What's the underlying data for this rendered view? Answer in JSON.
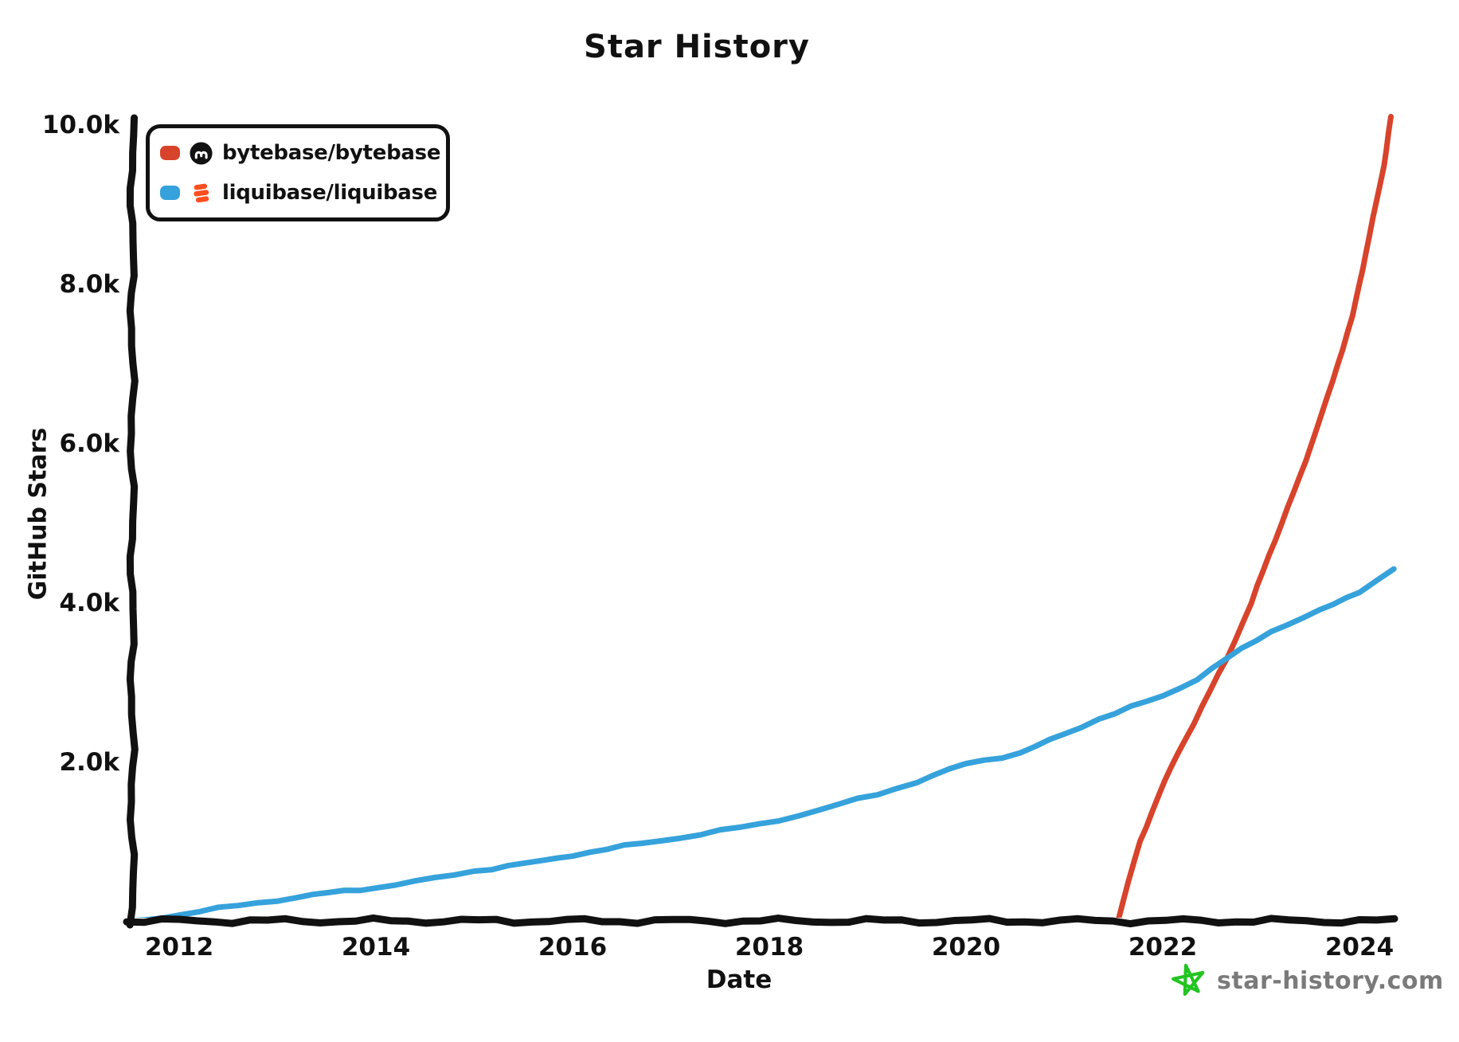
{
  "title": "Star History",
  "axes": {
    "xlabel": "Date",
    "ylabel": "GitHub Stars",
    "x_ticks": [
      "2012",
      "2014",
      "2016",
      "2018",
      "2020",
      "2022",
      "2024"
    ],
    "y_ticks": [
      {
        "label": "2.0k",
        "value": 2000
      },
      {
        "label": "4.0k",
        "value": 4000
      },
      {
        "label": "6.0k",
        "value": 6000
      },
      {
        "label": "8.0k",
        "value": 8000
      },
      {
        "label": "10.0k",
        "value": 10000
      }
    ]
  },
  "legend": {
    "items": [
      {
        "label": "bytebase/bytebase",
        "swatch_color": "#d8432b",
        "icon": "bytebase-avatar-icon"
      },
      {
        "label": "liquibase/liquibase",
        "swatch_color": "#36a2db",
        "icon": "liquibase-logo-icon"
      }
    ]
  },
  "watermark": {
    "text": "star-history.com",
    "icon": "star-icon",
    "icon_color": "#22c421",
    "text_color": "#7a7a7a"
  },
  "colors": {
    "bytebase_line": "#d8432b",
    "liquibase_line": "#36a2db",
    "axis": "#111111",
    "bytebase_avatar_bg": "#111111",
    "bytebase_avatar_glyph": "#ffffff",
    "liquibase_logo_orange": "#ff4e1f"
  },
  "chart_data": {
    "type": "line",
    "title": "Star History",
    "xlabel": "Date",
    "ylabel": "GitHub Stars",
    "xlim": [
      2011.5,
      2024.5
    ],
    "ylim": [
      0,
      10100
    ],
    "x_tick_values": [
      2012,
      2014,
      2016,
      2018,
      2020,
      2022,
      2024
    ],
    "y_tick_values": [
      2000,
      4000,
      6000,
      8000,
      10000
    ],
    "grid": false,
    "legend_position": "top-left",
    "series": [
      {
        "name": "bytebase/bytebase",
        "color": "#d8432b",
        "points": [
          [
            2021.54,
            0
          ],
          [
            2021.65,
            500
          ],
          [
            2021.77,
            1000
          ],
          [
            2021.96,
            1600
          ],
          [
            2022.15,
            2100
          ],
          [
            2022.4,
            2700
          ],
          [
            2022.65,
            3300
          ],
          [
            2022.9,
            4000
          ],
          [
            2023.08,
            4600
          ],
          [
            2023.4,
            5600
          ],
          [
            2023.68,
            6600
          ],
          [
            2023.93,
            7600
          ],
          [
            2024.1,
            8600
          ],
          [
            2024.25,
            9500
          ],
          [
            2024.32,
            10100
          ]
        ]
      },
      {
        "name": "liquibase/liquibase",
        "color": "#36a2db",
        "points": [
          [
            2011.53,
            0
          ],
          [
            2012,
            90
          ],
          [
            2012.6,
            200
          ],
          [
            2013.2,
            310
          ],
          [
            2014,
            430
          ],
          [
            2014.6,
            540
          ],
          [
            2015,
            640
          ],
          [
            2015.7,
            760
          ],
          [
            2016,
            840
          ],
          [
            2016.7,
            980
          ],
          [
            2017.3,
            1100
          ],
          [
            2017.9,
            1220
          ],
          [
            2018.5,
            1400
          ],
          [
            2019.1,
            1600
          ],
          [
            2019.5,
            1760
          ],
          [
            2020,
            1980
          ],
          [
            2020.55,
            2120
          ],
          [
            2021,
            2350
          ],
          [
            2021.35,
            2550
          ],
          [
            2022,
            2830
          ],
          [
            2022.35,
            3050
          ],
          [
            2022.65,
            3300
          ],
          [
            2023.1,
            3650
          ],
          [
            2023.6,
            3900
          ],
          [
            2024,
            4150
          ],
          [
            2024.35,
            4420
          ]
        ]
      }
    ]
  }
}
